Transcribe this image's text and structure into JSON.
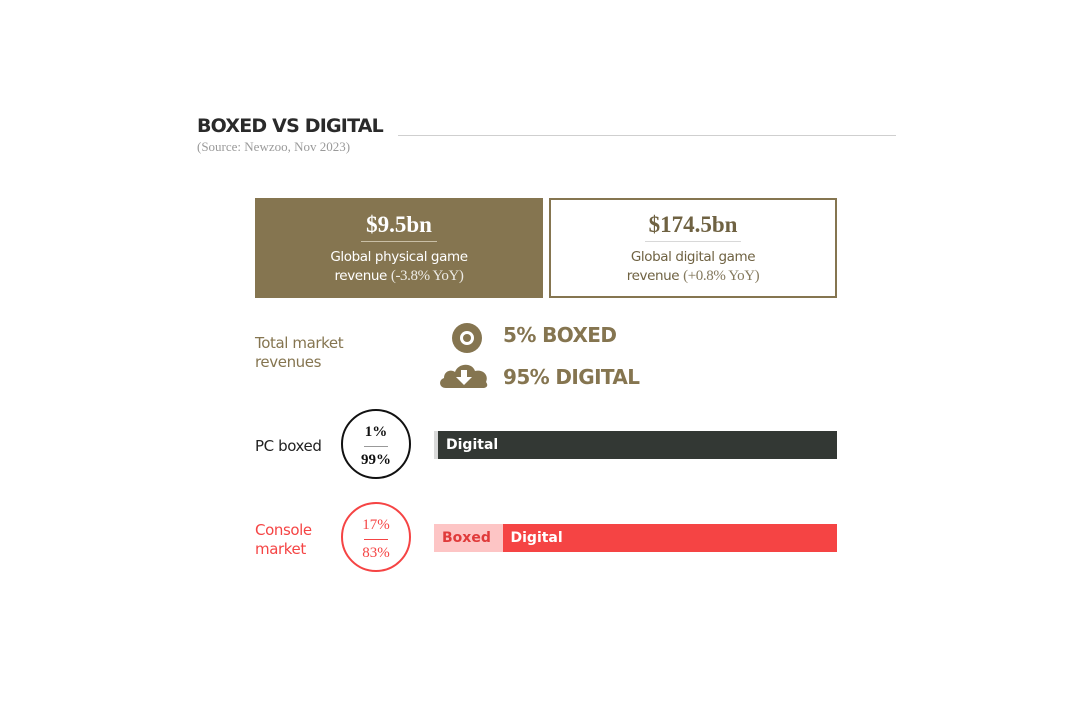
{
  "header": {
    "title": "BOXED VS DIGITAL",
    "source": "(Source: Newzoo, Nov 2023)"
  },
  "cards": [
    {
      "amount": "$9.5bn",
      "line1": "Global physical game",
      "line2": "revenue",
      "yoy": "(-3.8% YoY)"
    },
    {
      "amount": "$174.5bn",
      "line1": "Global digital game",
      "line2": "revenue",
      "yoy": "(+0.8% YoY)"
    }
  ],
  "total": {
    "label_line1": "Total market",
    "label_line2": "revenues",
    "boxed": "5% BOXED",
    "digital": "95% DIGITAL",
    "boxed_icon": "disc-icon",
    "digital_icon": "cloud-download-icon"
  },
  "colors": {
    "gold": "#857550",
    "dark": "#333834",
    "red": "#f54444",
    "pink": "#fdc5c5",
    "light_gray": "#d9d9d9"
  },
  "chart_data": {
    "type": "bar",
    "orientation": "horizontal-stacked",
    "categories": [
      "PC boxed",
      "Console market"
    ],
    "series": [
      {
        "name": "Boxed",
        "values": [
          1,
          17
        ]
      },
      {
        "name": "Digital",
        "values": [
          99,
          83
        ]
      }
    ],
    "unit": "%",
    "rows": [
      {
        "label_line1": "PC boxed",
        "label_line2": "",
        "top_pct": "1%",
        "bottom_pct": "99%",
        "boxed_label": "",
        "digital_label": "Digital"
      },
      {
        "label_line1": "Console",
        "label_line2": "market",
        "top_pct": "17%",
        "bottom_pct": "83%",
        "boxed_label": "Boxed",
        "digital_label": "Digital"
      }
    ]
  }
}
